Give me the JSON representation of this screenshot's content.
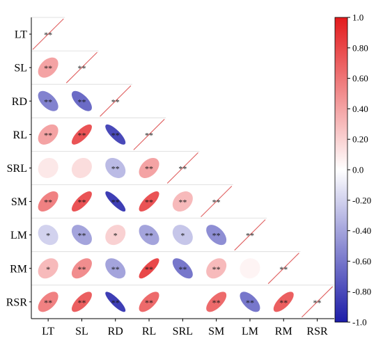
{
  "chart_data": {
    "type": "heatmap",
    "subtype": "correlation-ellipse-lower-triangle",
    "title": "",
    "variables": [
      "LT",
      "SL",
      "RD",
      "RL",
      "SRL",
      "SM",
      "LM",
      "RM",
      "RSR"
    ],
    "matrix": [
      [
        1.0,
        null,
        null,
        null,
        null,
        null,
        null,
        null,
        null
      ],
      [
        0.4,
        1.0,
        null,
        null,
        null,
        null,
        null,
        null,
        null
      ],
      [
        -0.55,
        -0.65,
        1.0,
        null,
        null,
        null,
        null,
        null,
        null
      ],
      [
        0.4,
        0.75,
        -0.8,
        1.0,
        null,
        null,
        null,
        null,
        null
      ],
      [
        0.1,
        0.15,
        -0.3,
        0.4,
        1.0,
        null,
        null,
        null,
        null
      ],
      [
        0.55,
        0.75,
        -0.85,
        0.75,
        0.3,
        1.0,
        null,
        null,
        null
      ],
      [
        -0.2,
        -0.4,
        0.2,
        -0.4,
        -0.25,
        -0.5,
        1.0,
        null,
        null
      ],
      [
        0.3,
        0.5,
        -0.4,
        0.8,
        -0.6,
        0.3,
        0.05,
        1.0,
        null
      ],
      [
        0.55,
        0.7,
        -0.85,
        0.65,
        0.0,
        0.65,
        -0.6,
        0.7,
        1.0
      ]
    ],
    "significance": [
      [
        "**",
        "",
        "",
        "",
        "",
        "",
        "",
        "",
        ""
      ],
      [
        "**",
        "**",
        "",
        "",
        "",
        "",
        "",
        "",
        ""
      ],
      [
        "**",
        "**",
        "**",
        "",
        "",
        "",
        "",
        "",
        ""
      ],
      [
        "**",
        "**",
        "**",
        "**",
        "",
        "",
        "",
        "",
        ""
      ],
      [
        "",
        "",
        "**",
        "**",
        "**",
        "",
        "",
        "",
        ""
      ],
      [
        "**",
        "**",
        "**",
        "**",
        "**",
        "**",
        "",
        "",
        ""
      ],
      [
        "*",
        "**",
        "*",
        "**",
        "*",
        "**",
        "**",
        "",
        ""
      ],
      [
        "*",
        "**",
        "**",
        "**",
        "**",
        "**",
        "",
        "**",
        ""
      ],
      [
        "**",
        "**",
        "**",
        "**",
        "",
        "**",
        "**",
        "**",
        "**"
      ]
    ],
    "colorbar": {
      "min": -1.0,
      "max": 1.0,
      "ticks": [
        "1.0",
        "0.80",
        "0.60",
        "0.40",
        "0.20",
        "0.0",
        "-0.20",
        "-0.40",
        "-0.60",
        "-0.80",
        "-1.0"
      ],
      "tick_values": [
        1.0,
        0.8,
        0.6,
        0.4,
        0.2,
        0.0,
        -0.2,
        -0.4,
        -0.6,
        -0.8,
        -1.0
      ],
      "colors": {
        "negative": "#1c1ca8",
        "zero": "#ffffff",
        "positive": "#e31a1c"
      }
    },
    "diagonal_line_color": "#e06060",
    "xlabel": "",
    "ylabel": ""
  }
}
